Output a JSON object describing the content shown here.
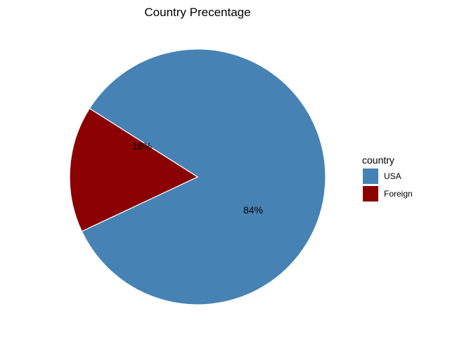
{
  "chart_data": {
    "type": "pie",
    "title": "Country Precentage",
    "legend_title": "country",
    "legend_position": "right",
    "slices": [
      {
        "name": "USA",
        "value": 84,
        "label": "84%",
        "color": "#4682B4"
      },
      {
        "name": "Foreign",
        "value": 16,
        "label": "16%",
        "color": "#8B0000"
      }
    ]
  }
}
